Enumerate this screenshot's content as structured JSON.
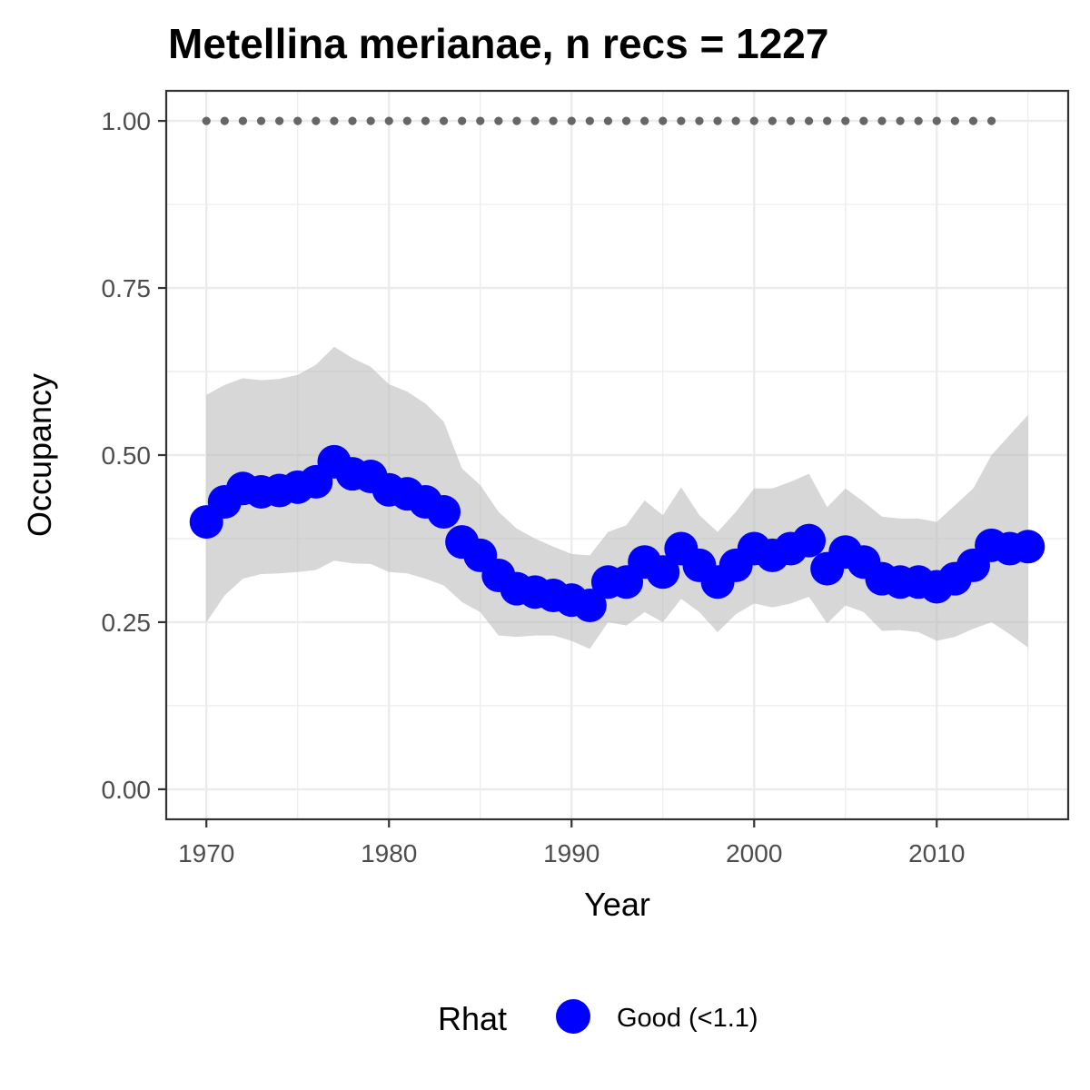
{
  "chart_data": {
    "type": "line",
    "title": "Metellina merianae, n recs = 1227",
    "xlabel": "Year",
    "ylabel": "Occupancy",
    "xlim": [
      1967.7,
      1917.3
    ],
    "ylim": [
      -0.045,
      1.045
    ],
    "x_ticks": [
      1970,
      1980,
      1990,
      2000,
      2010
    ],
    "y_ticks": [
      0.0,
      0.25,
      0.5,
      0.75,
      1.0
    ],
    "y_tick_labels": [
      "0.00",
      "0.25",
      "0.50",
      "0.75",
      "1.00"
    ],
    "grid": true,
    "years": [
      1970,
      1971,
      1972,
      1973,
      1974,
      1975,
      1976,
      1977,
      1978,
      1979,
      1980,
      1981,
      1982,
      1983,
      1984,
      1985,
      1986,
      1987,
      1988,
      1989,
      1990,
      1991,
      1992,
      1993,
      1994,
      1995,
      1996,
      1997,
      1998,
      1999,
      2000,
      2001,
      2002,
      2003,
      2004,
      2005,
      2006,
      2007,
      2008,
      2009,
      2010,
      2011,
      2012,
      2013,
      2014,
      2015
    ],
    "occupancy": [
      0.4,
      0.43,
      0.45,
      0.445,
      0.447,
      0.452,
      0.46,
      0.49,
      0.472,
      0.468,
      0.448,
      0.442,
      0.43,
      0.415,
      0.37,
      0.35,
      0.32,
      0.3,
      0.295,
      0.29,
      0.283,
      0.275,
      0.31,
      0.31,
      0.34,
      0.325,
      0.36,
      0.335,
      0.31,
      0.335,
      0.36,
      0.35,
      0.36,
      0.372,
      0.33,
      0.355,
      0.34,
      0.315,
      0.31,
      0.31,
      0.303,
      0.315,
      0.335,
      0.365,
      0.36,
      0.363
    ],
    "upper": [
      0.59,
      0.605,
      0.615,
      0.612,
      0.614,
      0.62,
      0.635,
      0.662,
      0.645,
      0.632,
      0.606,
      0.595,
      0.577,
      0.55,
      0.48,
      0.455,
      0.415,
      0.39,
      0.375,
      0.363,
      0.352,
      0.35,
      0.385,
      0.395,
      0.432,
      0.41,
      0.452,
      0.41,
      0.385,
      0.415,
      0.45,
      0.45,
      0.46,
      0.472,
      0.422,
      0.45,
      0.43,
      0.408,
      0.405,
      0.405,
      0.4,
      0.425,
      0.45,
      0.5,
      0.53,
      0.56
    ],
    "lower": [
      0.25,
      0.29,
      0.315,
      0.322,
      0.323,
      0.325,
      0.328,
      0.342,
      0.338,
      0.337,
      0.325,
      0.323,
      0.315,
      0.305,
      0.28,
      0.265,
      0.23,
      0.228,
      0.23,
      0.23,
      0.222,
      0.21,
      0.25,
      0.245,
      0.265,
      0.25,
      0.285,
      0.265,
      0.235,
      0.262,
      0.278,
      0.272,
      0.278,
      0.288,
      0.248,
      0.275,
      0.265,
      0.237,
      0.238,
      0.235,
      0.222,
      0.228,
      0.24,
      0.25,
      0.232,
      0.212
    ],
    "reference_line": {
      "y": 1.0,
      "x_start": 1970,
      "x_end": 2013,
      "step": 1
    },
    "legend": {
      "title": "Rhat",
      "entries": [
        {
          "label": "Good (<1.1)",
          "color": "#0000ff"
        }
      ],
      "position": "bottom"
    },
    "colors": {
      "points": "#0000ff",
      "ribbon": "#bebebe",
      "reference_dots": "#666666",
      "grid": "#ebebeb",
      "panel_border": "#333333"
    }
  }
}
